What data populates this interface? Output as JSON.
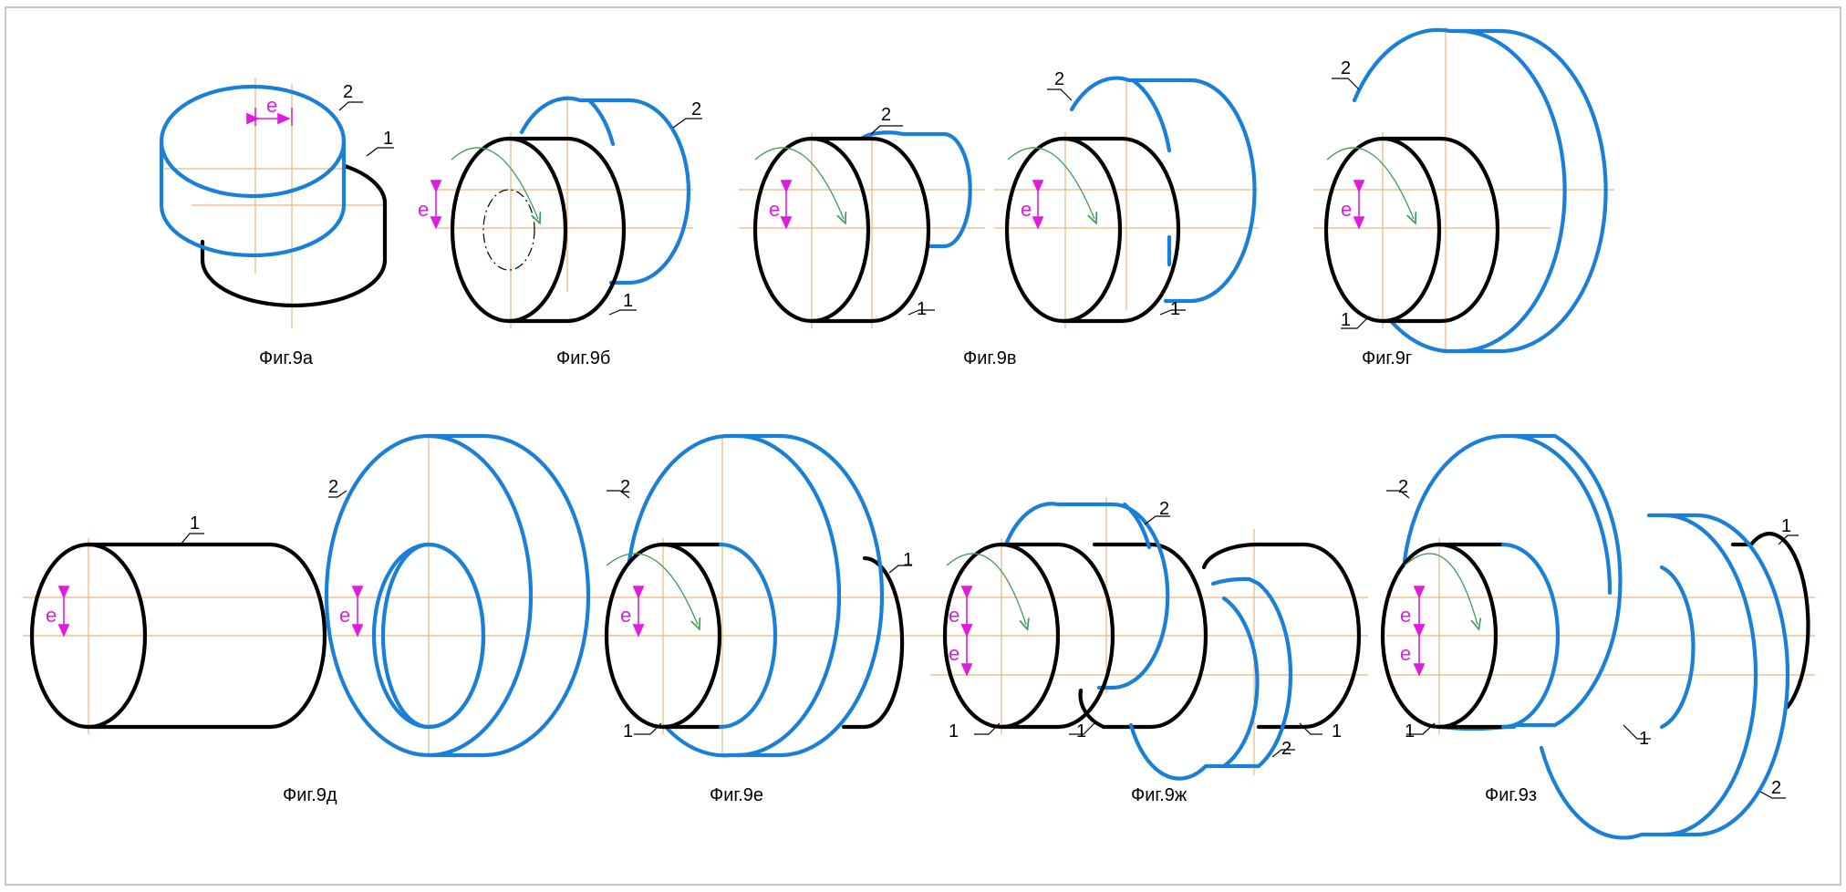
{
  "eccentricity_label": "e",
  "part_label_1": "1",
  "part_label_2": "2",
  "figures": {
    "a": "Фиг.9а",
    "b": "Фиг.9б",
    "v": "Фиг.9в",
    "g": "Фиг.9г",
    "d": "Фиг.9д",
    "e": "Фиг.9е",
    "zh": "Фиг.9ж",
    "z": "Фиг.9з"
  },
  "colors": {
    "part1": "#000000",
    "part2": "#1a7fd9",
    "dimension": "#e01ce0",
    "axis": "#e6b87a",
    "rotation_arrow": "#3f9a58"
  }
}
